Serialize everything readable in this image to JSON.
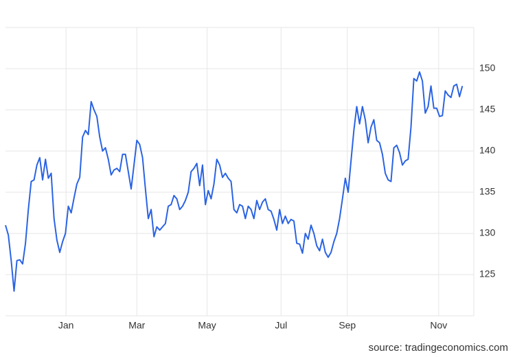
{
  "chart_data": {
    "type": "line",
    "source": "source: tradingeconomics.com",
    "color": "#2a63e3",
    "grid": true,
    "y_axis_side": "right",
    "values": [
      131,
      129.8,
      126.7,
      123,
      126.7,
      126.8,
      126.3,
      128.8,
      132.9,
      136.3,
      136.5,
      138.3,
      139.2,
      136.5,
      139,
      136.7,
      137.3,
      131.8,
      129.2,
      127.7,
      129,
      130,
      133.3,
      132.5,
      134.3,
      136,
      136.8,
      141.7,
      142.5,
      142,
      146,
      145,
      144.2,
      141.7,
      140,
      140.4,
      139,
      137.1,
      137.7,
      137.9,
      137.5,
      139.6,
      139.6,
      137.5,
      135.4,
      138.3,
      141.3,
      140.8,
      139.2,
      135.4,
      131.8,
      132.9,
      129.6,
      130.8,
      130.4,
      130.8,
      131.2,
      133.3,
      133.5,
      134.6,
      134.2,
      132.9,
      133.3,
      134,
      135,
      137.5,
      137.9,
      138.5,
      135.8,
      138.3,
      133.5,
      135.2,
      134.2,
      136,
      139,
      138.3,
      136.8,
      137.3,
      136.7,
      136.3,
      132.9,
      132.5,
      133.5,
      133.3,
      131.8,
      133.3,
      132.9,
      131.8,
      134,
      132.9,
      133.8,
      134.2,
      132.9,
      132.7,
      131.7,
      130.4,
      132.9,
      131.2,
      132.1,
      131.2,
      131.7,
      131.5,
      128.8,
      128.7,
      127.6,
      130,
      129.3,
      131,
      130,
      128.5,
      127.9,
      129.3,
      127.7,
      127.1,
      127.7,
      129,
      130,
      131.8,
      134.2,
      136.7,
      135,
      138.8,
      142.5,
      145.4,
      143.3,
      145.4,
      143.8,
      141,
      142.9,
      143.8,
      141.3,
      141,
      139.6,
      137.3,
      136.5,
      136.3,
      140.4,
      140.7,
      139.8,
      138.3,
      138.8,
      139,
      142.9,
      148.8,
      148.5,
      149.6,
      148.5,
      144.6,
      145.4,
      147.9,
      145.2,
      145.2,
      144.2,
      144.3,
      147.3,
      146.8,
      146.5,
      147.9,
      148.1,
      146.6,
      147.9
    ],
    "xlim": [
      0,
      164
    ],
    "xticks": [
      {
        "value": 21.2,
        "label": "Jan"
      },
      {
        "value": 46,
        "label": "Mar"
      },
      {
        "value": 70.6,
        "label": "May"
      },
      {
        "value": 96.5,
        "label": "Jul"
      },
      {
        "value": 119.7,
        "label": "Sep"
      },
      {
        "value": 151.7,
        "label": "Nov"
      }
    ],
    "ylim": [
      120,
      155
    ],
    "yticks": [
      125,
      130,
      135,
      140,
      145,
      150
    ]
  }
}
